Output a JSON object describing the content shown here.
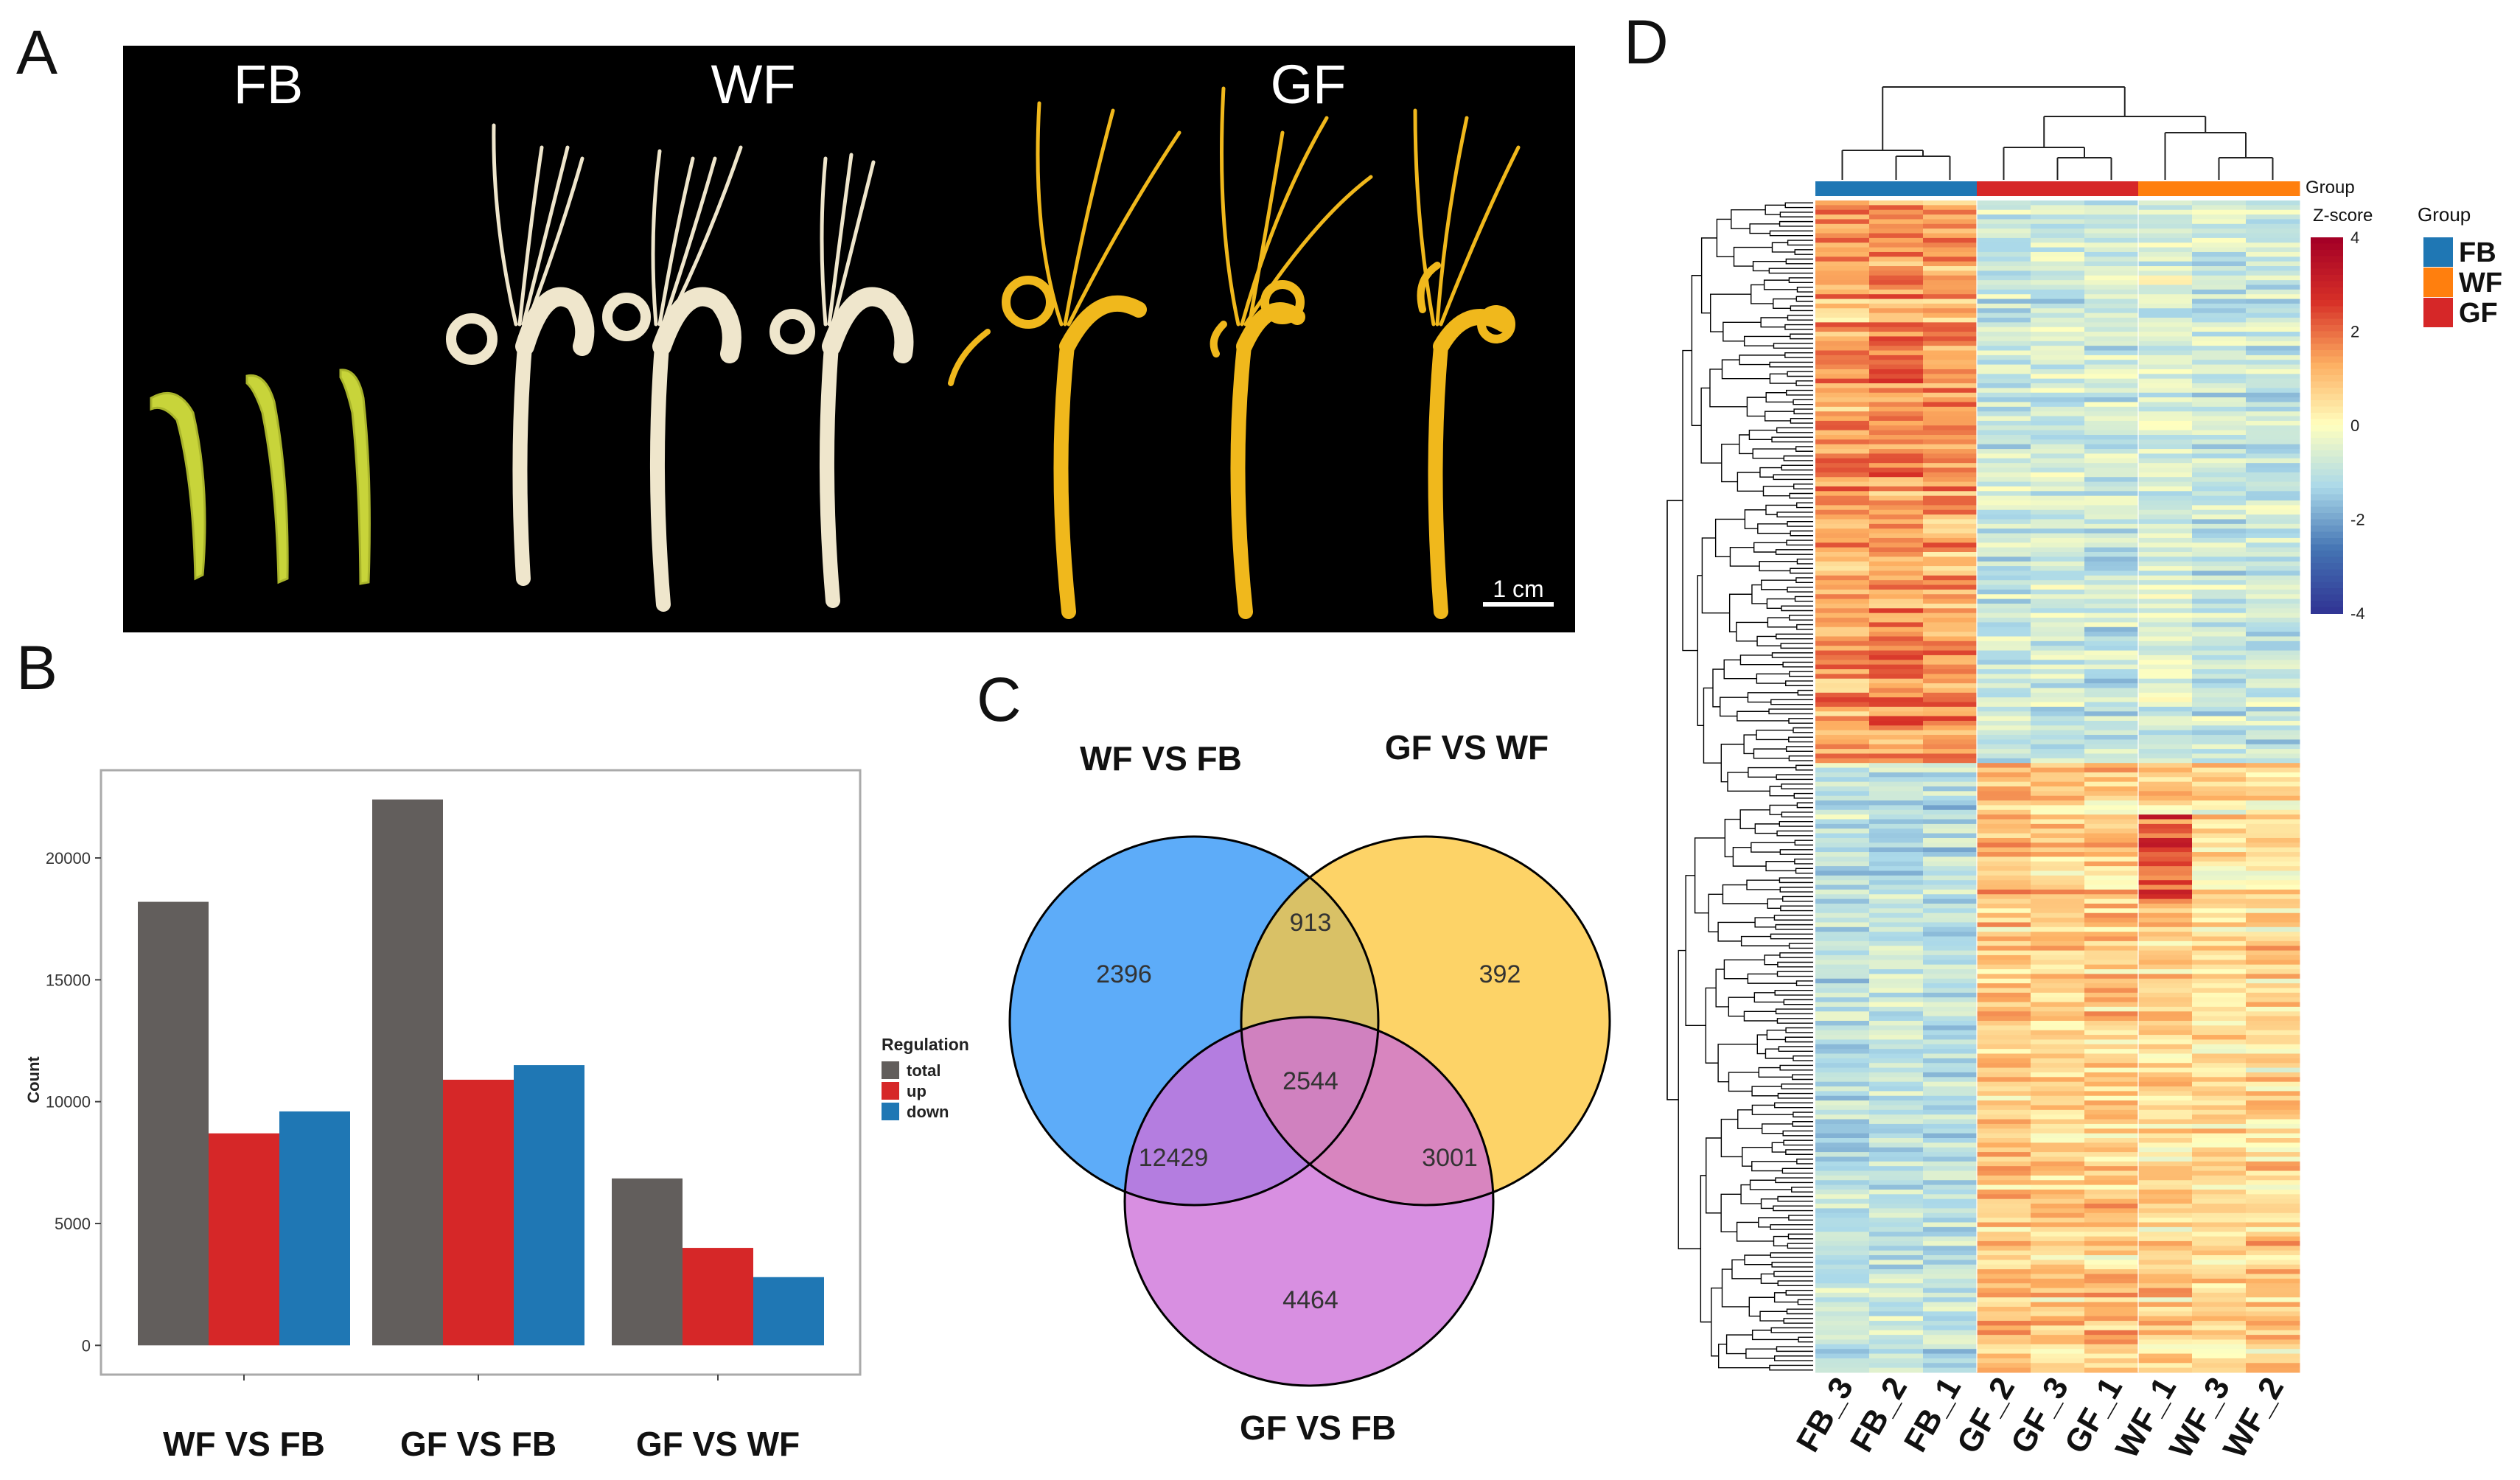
{
  "panels": {
    "a": {
      "label": "A",
      "stages": [
        "FB",
        "WF",
        "GF"
      ],
      "scale_bar_label": "1 cm",
      "colors": {
        "background": "#000000",
        "bud": "#c8d43a",
        "white_flower": "#efe6cc",
        "gold_flower": "#f0b81c"
      }
    },
    "b": {
      "label": "B"
    },
    "c": {
      "label": "C"
    },
    "d": {
      "label": "D"
    }
  },
  "chart_data": [
    {
      "panel": "B",
      "type": "bar",
      "title": "",
      "xlabel": "",
      "ylabel": "Count",
      "categories": [
        "WF VS FB",
        "GF VS FB",
        "GF VS WF"
      ],
      "series": [
        {
          "name": "total",
          "color": "#625e5c",
          "values": [
            18200,
            22400,
            6850
          ]
        },
        {
          "name": "up",
          "color": "#d62728",
          "values": [
            8700,
            10900,
            4000
          ]
        },
        {
          "name": "down",
          "color": "#1f77b4",
          "values": [
            9600,
            11500,
            2800
          ]
        }
      ],
      "ylim": [
        -1200,
        23600
      ],
      "yticks": [
        0,
        5000,
        10000,
        15000,
        20000
      ],
      "legend": {
        "title": "Regulation",
        "position": "right"
      }
    },
    {
      "panel": "C",
      "type": "venn",
      "sets": [
        {
          "name": "WF VS FB",
          "color": "#2f95f7"
        },
        {
          "name": "GF VS WF",
          "color": "#fcc63c"
        },
        {
          "name": "GF VS FB",
          "color": "#cd6fd8"
        }
      ],
      "regions": [
        {
          "sets": [
            "WF VS FB"
          ],
          "value": 2396
        },
        {
          "sets": [
            "GF VS WF"
          ],
          "value": 392
        },
        {
          "sets": [
            "GF VS FB"
          ],
          "value": 4464
        },
        {
          "sets": [
            "WF VS FB",
            "GF VS WF"
          ],
          "value": 913
        },
        {
          "sets": [
            "WF VS FB",
            "GF VS FB"
          ],
          "value": 12429
        },
        {
          "sets": [
            "GF VS WF",
            "GF VS FB"
          ],
          "value": 3001
        },
        {
          "sets": [
            "WF VS FB",
            "GF VS WF",
            "GF VS FB"
          ],
          "value": 2544
        }
      ]
    },
    {
      "panel": "D",
      "type": "heatmap",
      "columns": [
        "FB_3",
        "FB_2",
        "FB_1",
        "GF_2",
        "GF_3",
        "GF_1",
        "WF_1",
        "WF_3",
        "WF_2"
      ],
      "column_groups": [
        "FB",
        "FB",
        "FB",
        "GF",
        "GF",
        "GF",
        "WF",
        "WF",
        "WF"
      ],
      "annotation_title": "Group",
      "groups": [
        {
          "name": "FB",
          "color": "#1f77b4"
        },
        {
          "name": "WF",
          "color": "#ff7f0e"
        },
        {
          "name": "GF",
          "color": "#d62728"
        }
      ],
      "colorbar": {
        "title": "Z-score",
        "range": [
          -4,
          4
        ],
        "ticks": [
          4,
          2,
          0,
          -2,
          -4
        ],
        "colors": [
          "#313695",
          "#4575b4",
          "#abd9e9",
          "#ffffbf",
          "#fdae61",
          "#d73027",
          "#a50026"
        ]
      },
      "clusters": [
        {
          "name": "FB-high",
          "pattern": [
            1.4,
            1.6,
            1.5,
            -0.9,
            -0.8,
            -0.9,
            -0.6,
            -0.9,
            -0.9
          ]
        },
        {
          "name": "GF/WF-high",
          "pattern": [
            -1.1,
            -1.0,
            -1.1,
            0.9,
            0.7,
            0.8,
            0.6,
            0.5,
            0.6
          ]
        }
      ]
    }
  ]
}
